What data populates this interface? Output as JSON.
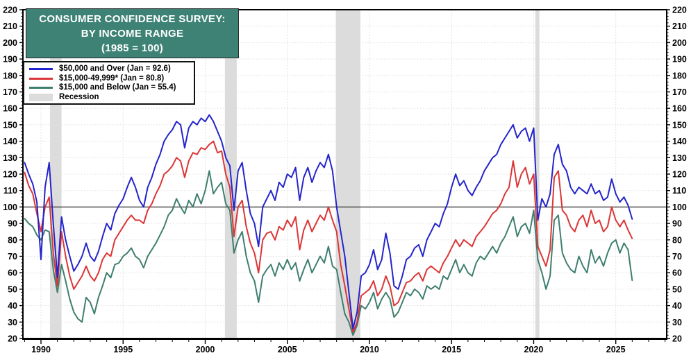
{
  "title": {
    "line1": "CONSUMER CONFIDENCE SURVEY:",
    "line2": "BY INCOME RANGE",
    "line3": "(1985 = 100)"
  },
  "colors": {
    "blue": "#2424cc",
    "red": "#dc3535",
    "green": "#3e7e6f",
    "recession": "#dcdcdc",
    "title_bg": "#3e8276",
    "title_text": "#ffffff",
    "grid_h": "#dedede",
    "grid_v": "#e3e3e3",
    "axis": "#000000",
    "reference_line": "#3a3a3a",
    "tick_label": "#000000"
  },
  "legend": {
    "items": [
      {
        "label": "$50,000 and Over (Jan = 92.6)",
        "swatch": "line",
        "color_key": "blue"
      },
      {
        "label": "$15,000-49,999* (Jan = 80.8)",
        "swatch": "line",
        "color_key": "red"
      },
      {
        "label": "$15,000 and Below (Jan = 55.4)",
        "swatch": "line",
        "color_key": "green"
      },
      {
        "label": "Recession",
        "swatch": "band",
        "color_key": "recession"
      }
    ]
  },
  "chart_data": {
    "type": "line",
    "title": "CONSUMER CONFIDENCE SURVEY: BY INCOME RANGE (1985 = 100)",
    "xlabel": "",
    "ylabel": "",
    "xlim": [
      1988.9,
      2028.1
    ],
    "ylim": [
      20,
      220
    ],
    "y_major_tick_step": 10,
    "y_minor_tick_step": 2,
    "y_axis_labels_both_sides": true,
    "x_major_ticks": [
      1990,
      1995,
      2000,
      2005,
      2010,
      2015,
      2020,
      2025
    ],
    "x_minor_tick_step": 1,
    "grid": "faint dotted horizontal every 10, faint vertical every 5 years",
    "legend_position": "top-left",
    "reference_line_y": 100,
    "recession_bands_years": [
      [
        1990.55,
        1991.25
      ],
      [
        2001.2,
        2001.92
      ],
      [
        2007.95,
        2009.45
      ],
      [
        2020.1,
        2020.35
      ]
    ],
    "x_start_year": 1989.0,
    "x_step_years": 0.25,
    "series": [
      {
        "name": "$50,000 and Over",
        "color_key": "blue",
        "jan_value": 92.6,
        "values": [
          127,
          120,
          114,
          103,
          68,
          112,
          127,
          90,
          57,
          94,
          80,
          70,
          61,
          65,
          70,
          78,
          70,
          67,
          73,
          82,
          90,
          86,
          96,
          101,
          105,
          112,
          118,
          112,
          104,
          100,
          112,
          118,
          126,
          132,
          140,
          144,
          147,
          152,
          150,
          136,
          148,
          152,
          150,
          154,
          152,
          156,
          152,
          146,
          140,
          130,
          125,
          98,
          122,
          127,
          110,
          96,
          90,
          76,
          100,
          105,
          110,
          104,
          115,
          112,
          120,
          118,
          124,
          104,
          118,
          124,
          115,
          122,
          127,
          124,
          132,
          122,
          100,
          85,
          70,
          48,
          26,
          36,
          58,
          60,
          65,
          74,
          62,
          68,
          84,
          72,
          52,
          50,
          58,
          68,
          70,
          75,
          77,
          70,
          80,
          85,
          90,
          88,
          96,
          102,
          112,
          120,
          113,
          116,
          110,
          107,
          112,
          116,
          122,
          126,
          130,
          132,
          138,
          142,
          146,
          150,
          142,
          146,
          148,
          140,
          148,
          92,
          105,
          100,
          108,
          132,
          138,
          126,
          122,
          112,
          108,
          112,
          110,
          108,
          114,
          108,
          110,
          104,
          106,
          117,
          108,
          103,
          106,
          101,
          92.6
        ]
      },
      {
        "name": "$15,000-49,999*",
        "color_key": "red",
        "jan_value": 80.8,
        "values": [
          121,
          113,
          108,
          96,
          85,
          100,
          106,
          72,
          52,
          85,
          70,
          58,
          50,
          54,
          58,
          64,
          58,
          55,
          60,
          68,
          72,
          70,
          80,
          84,
          88,
          92,
          95,
          92,
          92,
          90,
          98,
          102,
          108,
          113,
          120,
          122,
          125,
          130,
          128,
          118,
          128,
          133,
          132,
          136,
          135,
          138,
          140,
          133,
          134,
          120,
          112,
          82,
          100,
          104,
          88,
          78,
          72,
          60,
          80,
          84,
          85,
          80,
          88,
          86,
          92,
          88,
          94,
          74,
          86,
          92,
          85,
          90,
          95,
          92,
          100,
          92,
          85,
          65,
          52,
          38,
          24,
          30,
          46,
          48,
          50,
          55,
          46,
          50,
          58,
          52,
          40,
          42,
          48,
          54,
          55,
          58,
          60,
          55,
          62,
          64,
          62,
          60,
          66,
          70,
          75,
          80,
          76,
          80,
          78,
          76,
          82,
          85,
          88,
          92,
          96,
          98,
          102,
          108,
          112,
          128,
          112,
          120,
          124,
          114,
          120,
          76,
          70,
          64,
          74,
          118,
          122,
          98,
          95,
          88,
          85,
          92,
          95,
          88,
          98,
          90,
          92,
          85,
          88,
          100,
          92,
          88,
          92,
          86,
          80.8
        ]
      },
      {
        "name": "$15,000 and Below",
        "color_key": "green",
        "jan_value": 55.4,
        "values": [
          93,
          90,
          88,
          83,
          80,
          86,
          85,
          62,
          48,
          65,
          55,
          44,
          36,
          32,
          30,
          45,
          42,
          35,
          45,
          52,
          60,
          57,
          65,
          66,
          70,
          72,
          75,
          70,
          68,
          63,
          70,
          74,
          78,
          83,
          88,
          95,
          98,
          105,
          100,
          96,
          104,
          100,
          108,
          102,
          110,
          122,
          108,
          112,
          115,
          102,
          98,
          72,
          80,
          85,
          70,
          60,
          55,
          42,
          58,
          62,
          65,
          58,
          66,
          62,
          68,
          62,
          66,
          55,
          62,
          68,
          60,
          65,
          70,
          66,
          76,
          64,
          62,
          48,
          35,
          30,
          22,
          28,
          40,
          38,
          42,
          48,
          38,
          44,
          48,
          44,
          33,
          36,
          42,
          48,
          46,
          50,
          48,
          44,
          52,
          50,
          52,
          50,
          58,
          56,
          62,
          68,
          60,
          65,
          60,
          58,
          66,
          70,
          68,
          72,
          76,
          72,
          78,
          82,
          88,
          94,
          82,
          88,
          90,
          84,
          98,
          68,
          60,
          50,
          58,
          92,
          95,
          72,
          66,
          62,
          60,
          70,
          64,
          60,
          74,
          66,
          70,
          64,
          72,
          78,
          80,
          72,
          78,
          74,
          55.4
        ]
      }
    ]
  }
}
